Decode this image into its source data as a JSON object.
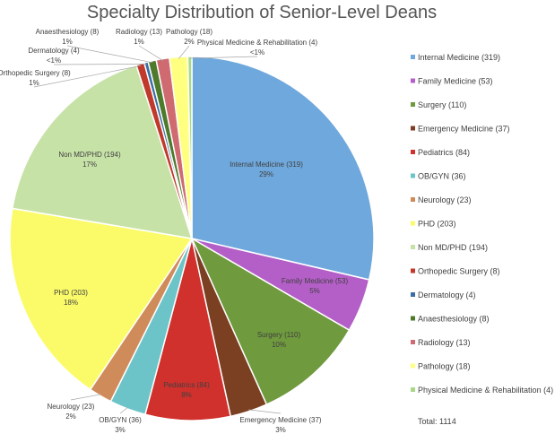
{
  "chart_data": {
    "type": "pie",
    "title": "Specialty Distribution of Senior-Level Deans",
    "start_angle_deg": 0,
    "slices": [
      {
        "name": "Internal Medicine",
        "legend": "Internal Medicine (319)",
        "label": "Internal Medicine (319)",
        "pct": "29%",
        "value": 319,
        "color": "#6fa8dc"
      },
      {
        "name": "Family Medicine",
        "legend": "Family Medicine (53)",
        "label": "Family Medicine (53)",
        "pct": "5%",
        "value": 53,
        "color": "#b45fc8"
      },
      {
        "name": "Surgery",
        "legend": "Surgery (110)",
        "label": "Surgery (110)",
        "pct": "10%",
        "value": 110,
        "color": "#6f9a3e"
      },
      {
        "name": "Emergency Medicine",
        "legend": "Emergency Medicine (37)",
        "label": "Emergency Medicine (37)",
        "pct": "3%",
        "value": 37,
        "color": "#7b3f22"
      },
      {
        "name": "Pediatrics",
        "legend": "Pediatrics (84)",
        "label": "Pediatrics (84)",
        "pct": "8%",
        "value": 84,
        "color": "#d0312d"
      },
      {
        "name": "OB/GYN",
        "legend": "OB/GYN (36)",
        "label": "OB/GYN (36)",
        "pct": "3%",
        "value": 36,
        "color": "#6cc4c8"
      },
      {
        "name": "Neurology",
        "legend": "Neurology (23)",
        "label": "Neurology (23)",
        "pct": "2%",
        "value": 23,
        "color": "#d08b5b"
      },
      {
        "name": "PHD",
        "legend": "PHD (203)",
        "label": "PHD (203)",
        "pct": "18%",
        "value": 203,
        "color": "#fbfb6a"
      },
      {
        "name": "Non MD/PHD",
        "legend": "Non MD/PHD (194)",
        "label": "Non MD/PHD (194)",
        "pct": "17%",
        "value": 194,
        "color": "#c7e2a7"
      },
      {
        "name": "Orthopedic Surgery",
        "legend": "Orthopedic Surgery (8)",
        "label": "Orthopedic Surgery (8)",
        "pct": "1%",
        "value": 8,
        "color": "#c0392b"
      },
      {
        "name": "Dermatology",
        "legend": "Dermatology (4)",
        "label": "Dermatology (4)",
        "pct": "<1%",
        "value": 4,
        "color": "#3b6ea5"
      },
      {
        "name": "Anaesthesiology",
        "legend": "Anaesthesiology (8)",
        "label": "Anaesthesiology (8)",
        "pct": "1%",
        "value": 8,
        "color": "#4e7a2c"
      },
      {
        "name": "Radiology",
        "legend": "Radiology (13)",
        "label": "Radiology (13)",
        "pct": "1%",
        "value": 13,
        "color": "#cf6b70"
      },
      {
        "name": "Pathology",
        "legend": "Pathology (18)",
        "label": "Pathology (18)",
        "pct": "2%",
        "value": 18,
        "color": "#ffff80"
      },
      {
        "name": "Physical Medicine & Rehabilitation",
        "legend": "Physical Medicine & Rehabilitation (4)",
        "label": "Physical Medicine & Rehabilitation (4)",
        "pct": "<1%",
        "value": 4,
        "color": "#a9d88a"
      }
    ],
    "total_label": "Total: 1114",
    "legend_position": "right"
  }
}
